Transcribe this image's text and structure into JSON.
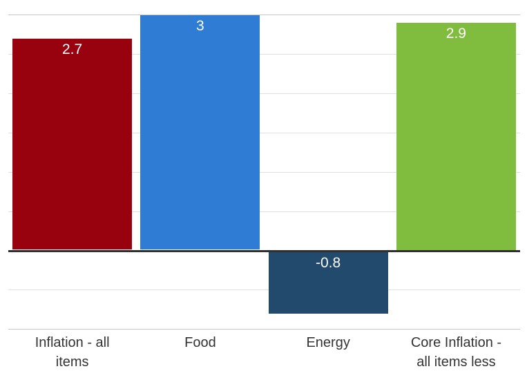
{
  "chart_data": {
    "type": "bar",
    "title": "",
    "xlabel": "",
    "ylabel": "",
    "categories": [
      "Inflation - all items",
      "Food",
      "Energy",
      "Core Inflation - all items less"
    ],
    "category_display_lines": [
      "Inflation - all\nitems",
      "Food",
      "Energy",
      "Core Inflation -\nall items less"
    ],
    "values": [
      2.7,
      3,
      -0.8,
      2.9
    ],
    "data_labels": [
      "2.7",
      "3",
      "-0.8",
      "2.9"
    ],
    "bar_colors": [
      "#98010e",
      "#2e7cd4",
      "#224a6d",
      "#80bc3e"
    ],
    "ylim": [
      -1.0,
      3.19
    ],
    "gridline_step": 0.5,
    "y_gridlines": [
      3,
      2.5,
      2,
      1.5,
      1,
      0.5,
      0,
      -0.5,
      -1
    ],
    "edge_gridlines": [
      3,
      -1
    ],
    "grid": "horizontal",
    "legend": "none",
    "y_axis_tick_labels": "none"
  },
  "style": {
    "background": "#ffffff",
    "gridline_color": "#e0e0e0",
    "edge_gridline_color": "#c6c6c6",
    "zero_line_color": "#2f2f2f",
    "data_label_color": "#ffffff",
    "category_label_color": "#333333"
  }
}
